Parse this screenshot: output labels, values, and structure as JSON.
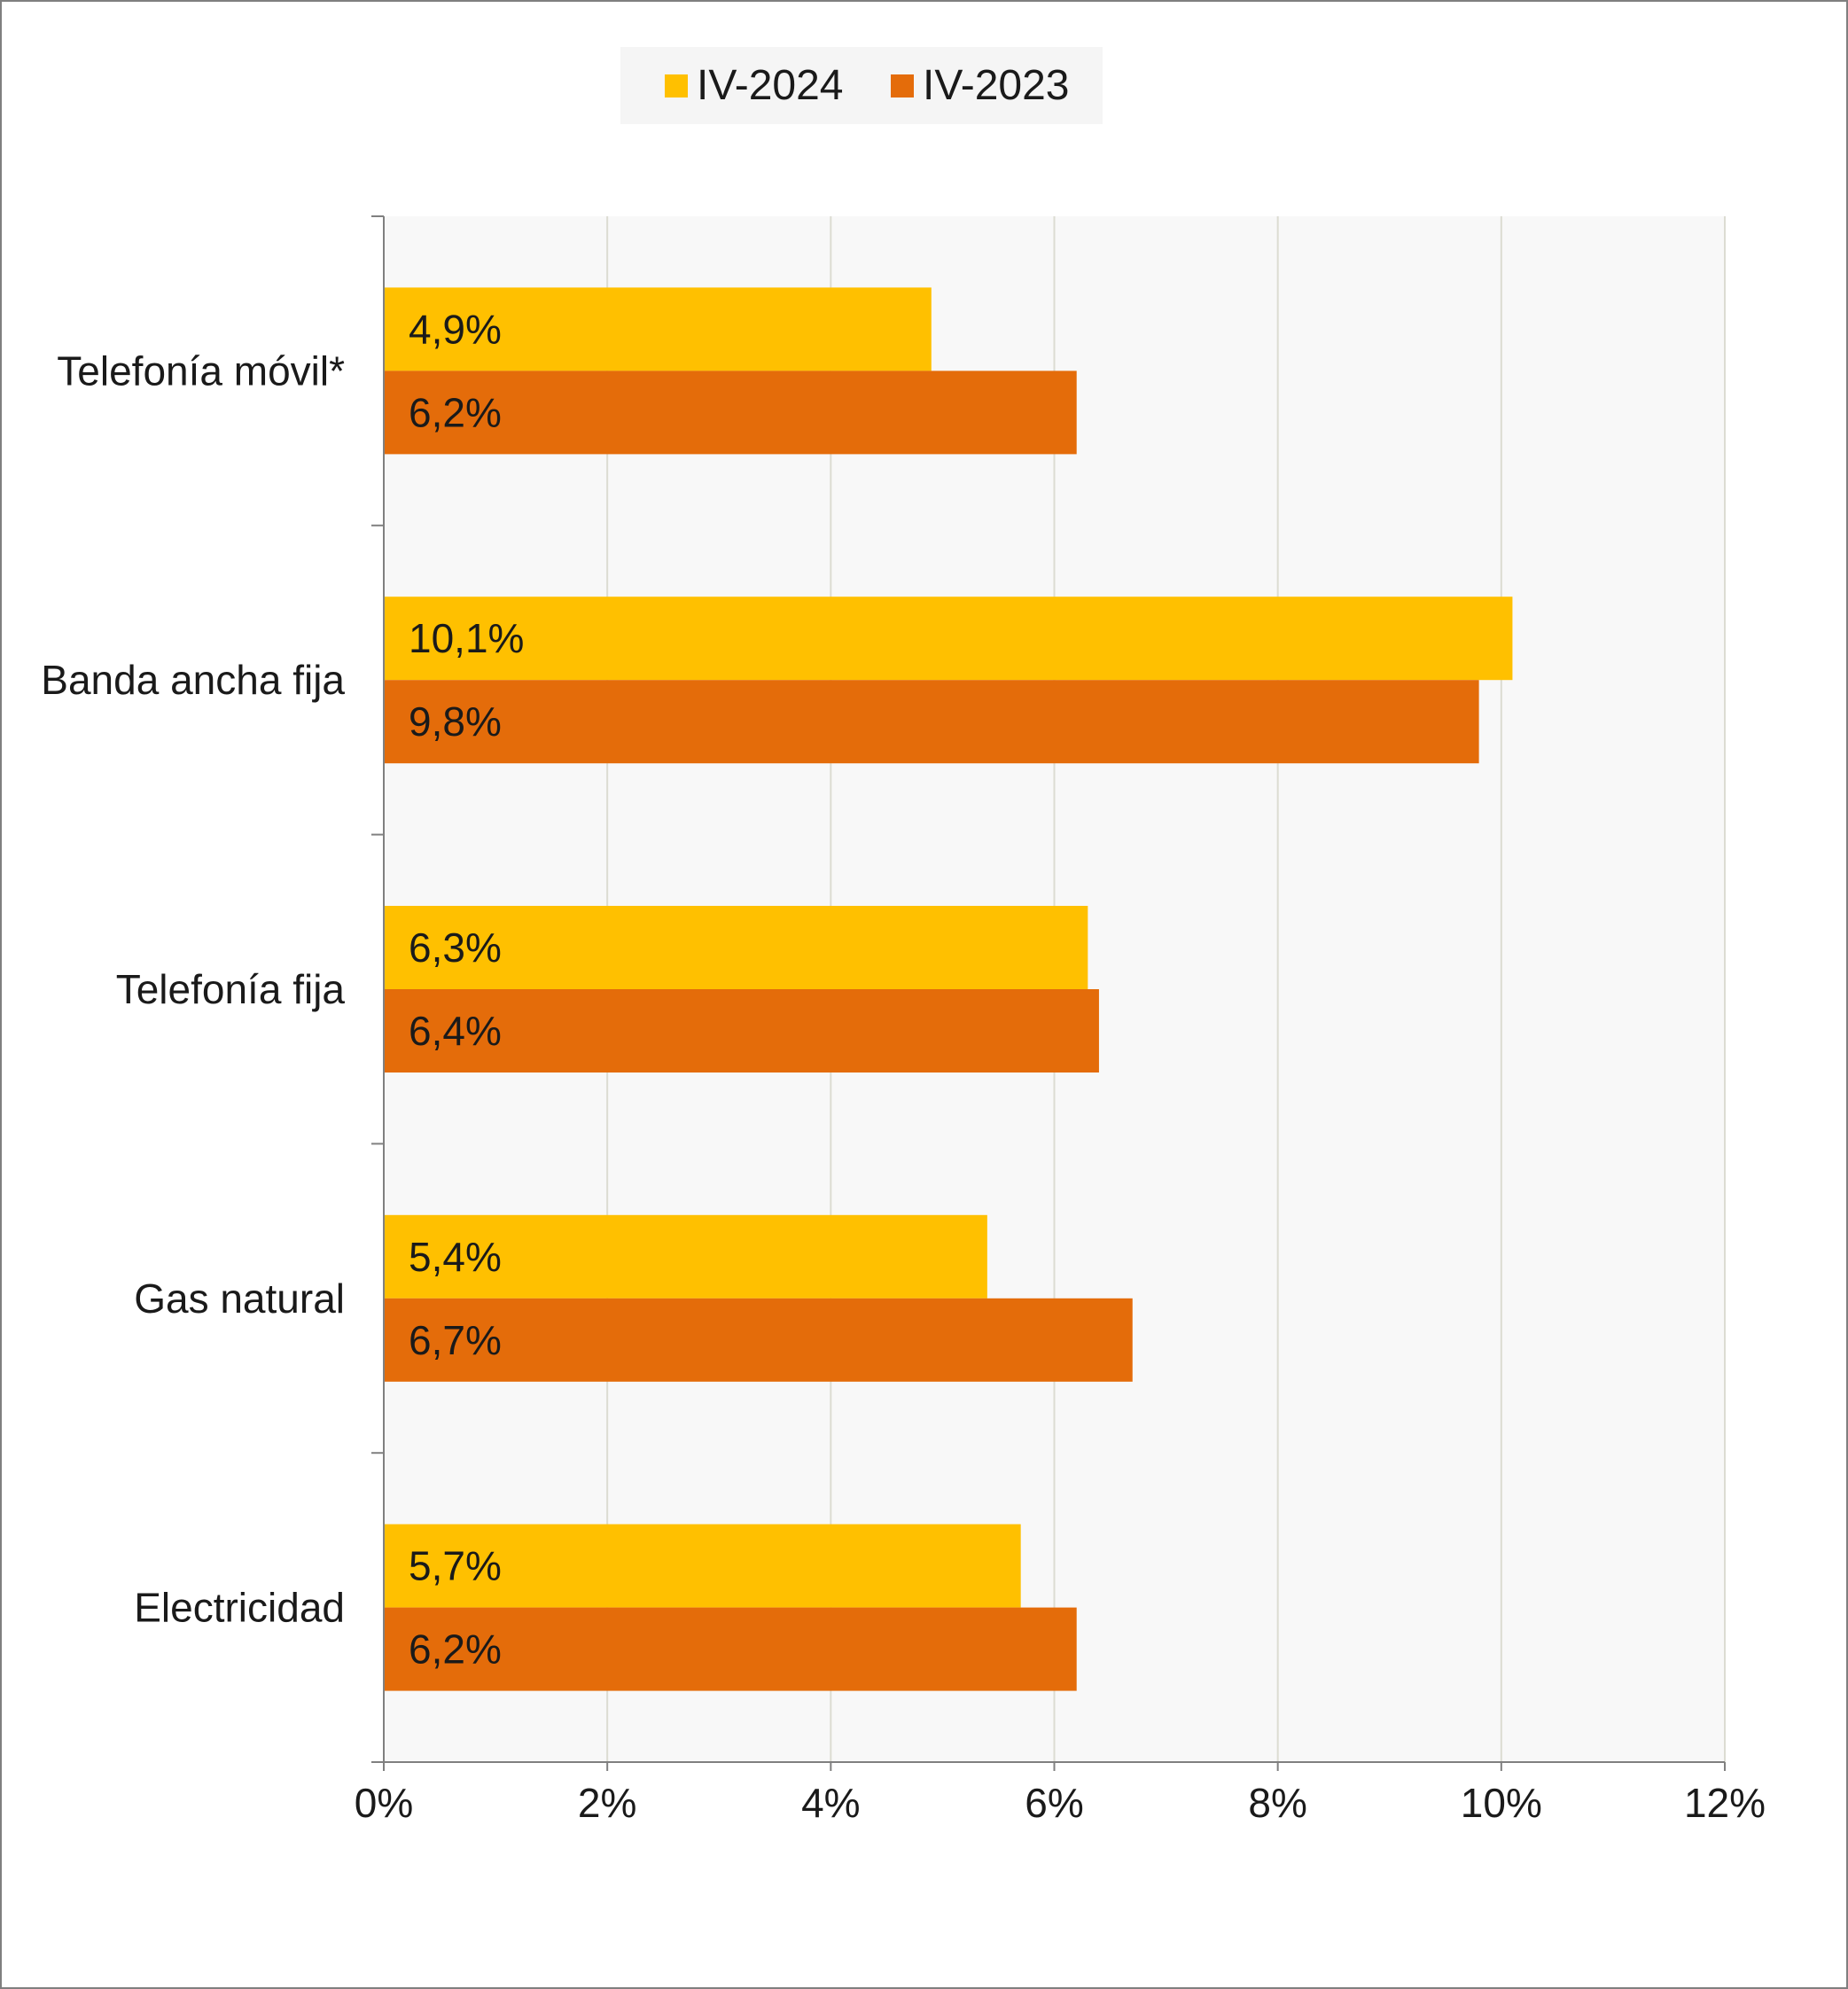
{
  "chart_data": {
    "type": "bar",
    "orientation": "horizontal",
    "categories": [
      "Telefonía móvil*",
      "Banda ancha fija",
      "Telefonía fija",
      "Gas natural",
      "Electricidad"
    ],
    "series": [
      {
        "name": "IV-2024",
        "color": "#FFC000",
        "values": [
          4.9,
          10.1,
          6.3,
          5.4,
          5.7
        ],
        "labels": [
          "4,9%",
          "10,1%",
          "6,3%",
          "5,4%",
          "5,7%"
        ]
      },
      {
        "name": "IV-2023",
        "color": "#E46C0A",
        "values": [
          6.2,
          9.8,
          6.4,
          6.7,
          6.2
        ],
        "labels": [
          "6,2%",
          "9,8%",
          "6,4%",
          "6,7%",
          "6,2%"
        ]
      }
    ],
    "xlim": [
      0,
      12
    ],
    "xticks": [
      0,
      2,
      4,
      6,
      8,
      10,
      12
    ],
    "xtick_labels": [
      "0%",
      "2%",
      "4%",
      "6%",
      "8%",
      "10%",
      "12%"
    ],
    "grid": "vertical",
    "legend_position": "top-center",
    "plot_background": "#F8F8F8",
    "gridline_color": "#DCDCD2",
    "axis_color": "#808080"
  }
}
